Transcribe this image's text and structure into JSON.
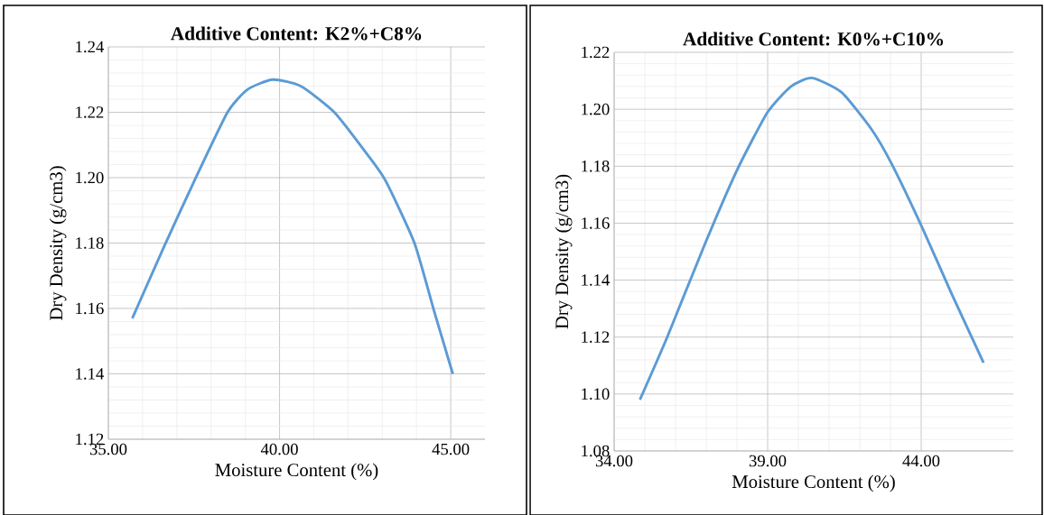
{
  "chart_data": [
    {
      "type": "line",
      "title": "Additive Content: K2%+C8%",
      "xlabel": "Moisture Content (%)",
      "ylabel": "Dry Density (g/cm3)",
      "x": [
        35.7,
        36.63,
        37.51,
        38.48,
        39.07,
        39.8,
        40.62,
        41.6,
        42.57,
        43.1,
        43.94,
        44.52,
        45.06
      ],
      "series": [
        {
          "color": "#5b9bd5",
          "values": [
            1.157,
            1.179,
            1.199,
            1.22,
            1.227,
            1.23,
            1.228,
            1.22,
            1.207,
            1.199,
            1.18,
            1.159,
            1.14
          ]
        }
      ],
      "xlim": [
        35,
        46
      ],
      "ylim": [
        1.12,
        1.24
      ],
      "xticks": [
        {
          "value": 35,
          "label": "35.00"
        },
        {
          "value": 40,
          "label": "40.00"
        },
        {
          "value": 45,
          "label": "45.00"
        }
      ],
      "yticks": [
        {
          "value": 1.12,
          "label": "1.12"
        },
        {
          "value": 1.14,
          "label": "1.14"
        },
        {
          "value": 1.16,
          "label": "1.16"
        },
        {
          "value": 1.18,
          "label": "1.18"
        },
        {
          "value": 1.2,
          "label": "1.20"
        },
        {
          "value": 1.22,
          "label": "1.22"
        },
        {
          "value": 1.24,
          "label": "1.24"
        }
      ],
      "grid": true
    },
    {
      "type": "line",
      "title": "Additive Content: K0%+C10%",
      "xlabel": "Moisture Content (%)",
      "ylabel": "Dry Density (g/cm3)",
      "x": [
        34.84,
        35.73,
        36.93,
        38.02,
        39.0,
        39.76,
        40.44,
        41.4,
        42.38,
        43.03,
        44.01,
        45.0,
        46.03
      ],
      "series": [
        {
          "color": "#5b9bd5",
          "values": [
            1.098,
            1.12,
            1.152,
            1.179,
            1.199,
            1.208,
            1.211,
            1.206,
            1.193,
            1.181,
            1.159,
            1.135,
            1.111
          ]
        }
      ],
      "xlim": [
        34,
        47
      ],
      "ylim": [
        1.08,
        1.22
      ],
      "xticks": [
        {
          "value": 34,
          "label": "34.00"
        },
        {
          "value": 39,
          "label": "39.00"
        },
        {
          "value": 44,
          "label": "44.00"
        }
      ],
      "yticks": [
        {
          "value": 1.08,
          "label": "1.08"
        },
        {
          "value": 1.1,
          "label": "1.10"
        },
        {
          "value": 1.12,
          "label": "1.12"
        },
        {
          "value": 1.14,
          "label": "1.14"
        },
        {
          "value": 1.16,
          "label": "1.16"
        },
        {
          "value": 1.18,
          "label": "1.18"
        },
        {
          "value": 1.2,
          "label": "1.20"
        },
        {
          "value": 1.22,
          "label": "1.22"
        }
      ],
      "grid": true
    }
  ]
}
